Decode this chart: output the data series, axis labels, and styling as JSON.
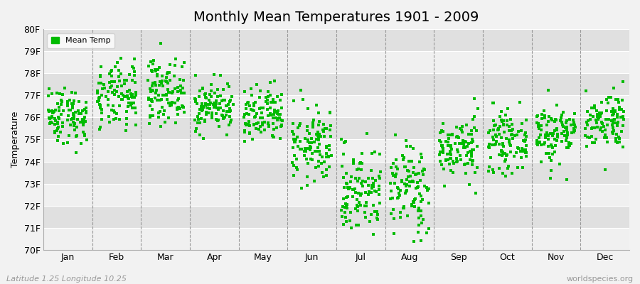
{
  "title": "Monthly Mean Temperatures 1901 - 2009",
  "ylabel": "Temperature",
  "xlabel_labels": [
    "Jan",
    "Feb",
    "Mar",
    "Apr",
    "May",
    "Jun",
    "Jul",
    "Aug",
    "Sep",
    "Oct",
    "Nov",
    "Dec"
  ],
  "ytick_labels": [
    "70F",
    "71F",
    "72F",
    "73F",
    "74F",
    "75F",
    "76F",
    "77F",
    "78F",
    "79F",
    "80F"
  ],
  "ytick_values": [
    70,
    71,
    72,
    73,
    74,
    75,
    76,
    77,
    78,
    79,
    80
  ],
  "ylim": [
    70,
    80
  ],
  "dot_color": "#00bb00",
  "bg_color": "#f2f2f2",
  "plot_bg_color": "#e8e8e8",
  "band_color_light": "#f0f0f0",
  "band_color_dark": "#e0e0e0",
  "legend_label": "Mean Temp",
  "footer_left": "Latitude 1.25 Longitude 10.25",
  "footer_right": "worldspecies.org",
  "monthly_means_F": [
    76.1,
    76.9,
    77.2,
    76.5,
    76.0,
    74.7,
    72.7,
    72.8,
    74.6,
    74.9,
    75.3,
    75.9
  ],
  "monthly_stds_F": [
    0.65,
    0.75,
    0.7,
    0.55,
    0.65,
    0.85,
    1.0,
    1.05,
    0.7,
    0.65,
    0.7,
    0.65
  ],
  "years": 109,
  "seed": 42,
  "title_fontsize": 14,
  "axis_fontsize": 9,
  "footer_fontsize": 8,
  "legend_fontsize": 8,
  "marker_size": 6
}
